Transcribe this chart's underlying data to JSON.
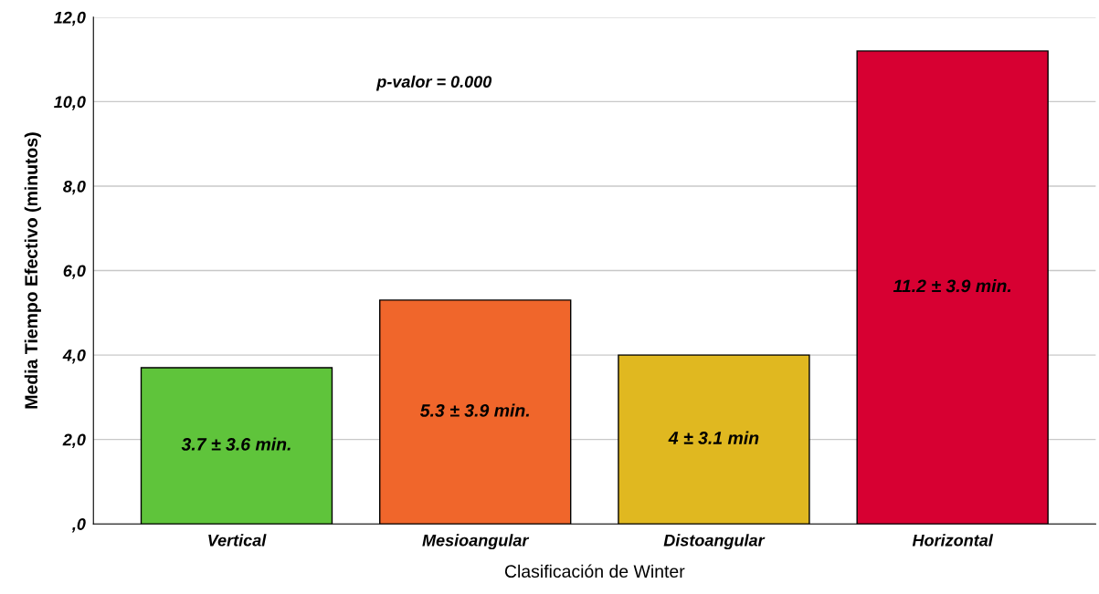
{
  "chart_data": {
    "type": "bar",
    "xlabel": "Clasificación de Winter",
    "ylabel": "Media Tiempo Efectivo (minutos)",
    "categories": [
      "Vertical",
      "Mesioangular",
      "Distoangular",
      "Horizontal"
    ],
    "values": [
      3.7,
      5.3,
      4,
      11.2
    ],
    "colors": [
      "#5fc43b",
      "#f0662b",
      "#e0b820",
      "#d70032"
    ],
    "value_labels": [
      "3.7 ± 3.6 min.",
      "5.3 ± 3.9 min.",
      "4 ± 3.1 min",
      "11.2 ± 3.9 min."
    ],
    "ylim": [
      0,
      12
    ],
    "yticks": [
      {
        "value": 0,
        "label": ",0"
      },
      {
        "value": 2,
        "label": "2,0"
      },
      {
        "value": 4,
        "label": "4,0"
      },
      {
        "value": 6,
        "label": "6,0"
      },
      {
        "value": 8,
        "label": "8,0"
      },
      {
        "value": 10,
        "label": "10,0"
      },
      {
        "value": 12,
        "label": "12,0"
      }
    ],
    "grid": "y",
    "annotations": [
      "p-valor = 0.000"
    ]
  }
}
